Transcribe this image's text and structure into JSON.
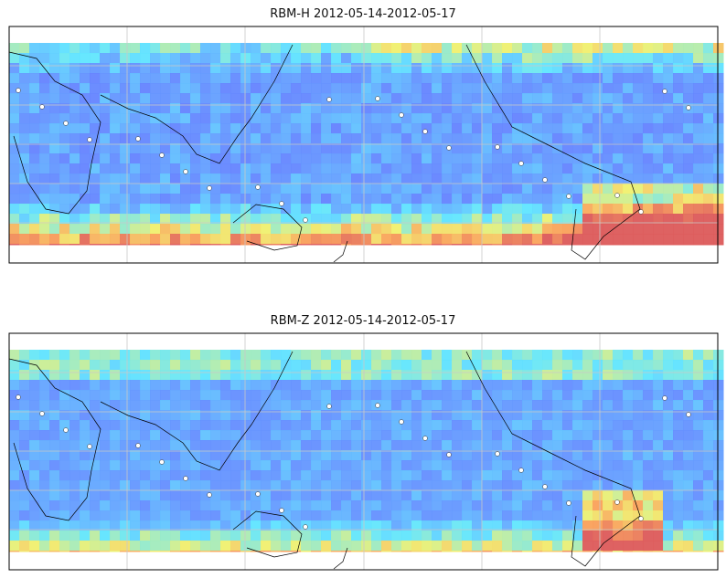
{
  "panels": [
    {
      "title": "RBM-H 2012-05-14-2012-05-17",
      "variant": "H"
    },
    {
      "title": "RBM-Z 2012-05-14-2012-05-17",
      "variant": "Z"
    }
  ],
  "colors": {
    "low": "#6464ff",
    "mid": "#5fe6ff",
    "yellow": "#f0f070",
    "high": "#e05a5a",
    "grid": "#c8c8c8",
    "coast": "#000000"
  }
}
